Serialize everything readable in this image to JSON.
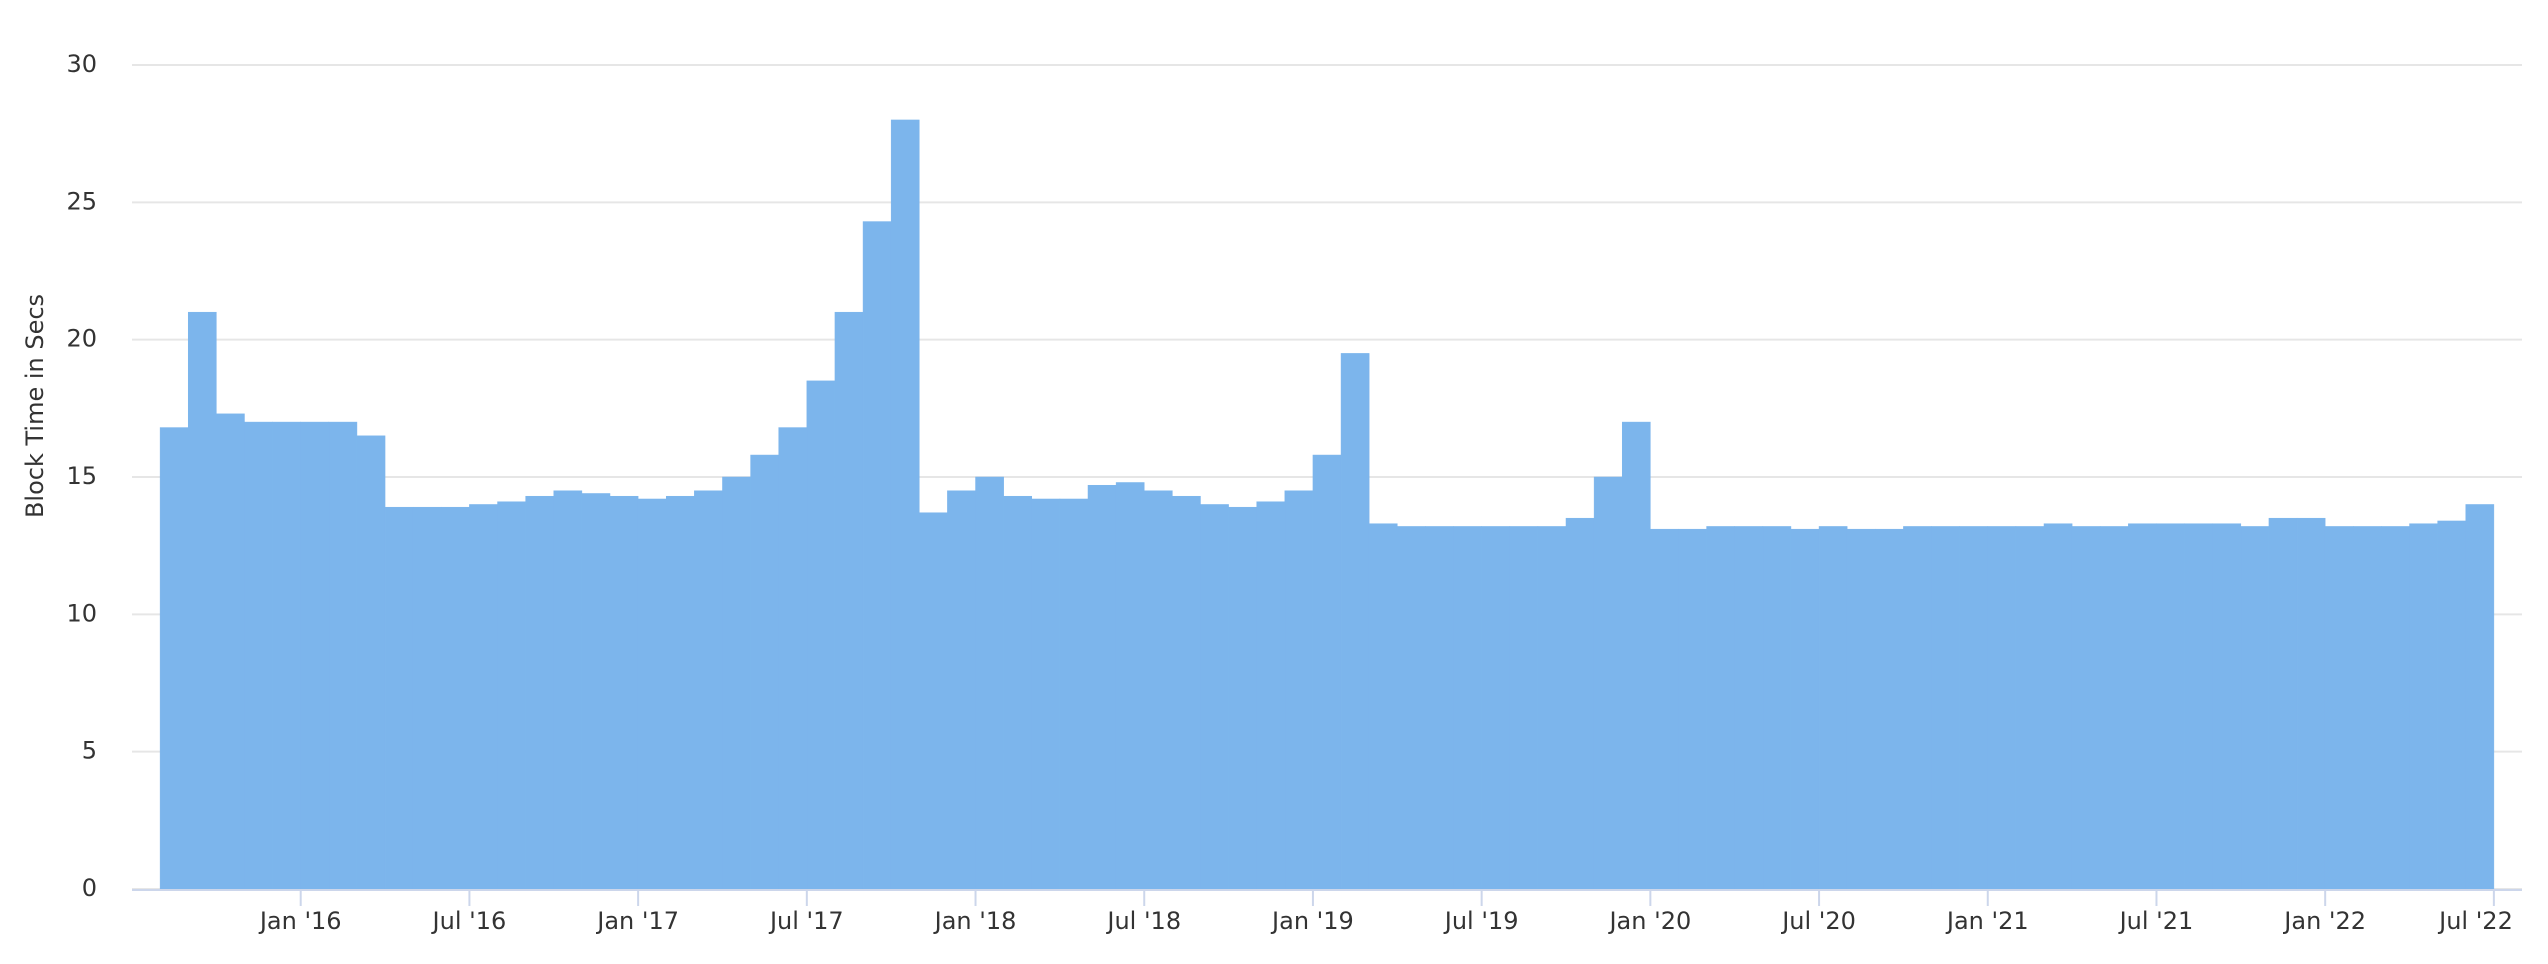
{
  "chart_data": {
    "type": "bar",
    "y_label": "Block Time in Secs",
    "color": "#7cb5ec",
    "grid": true,
    "x": [
      "2015-08",
      "2015-09",
      "2015-10",
      "2015-11",
      "2015-12",
      "2016-01",
      "2016-02",
      "2016-03",
      "2016-04",
      "2016-05",
      "2016-06",
      "2016-07",
      "2016-08",
      "2016-09",
      "2016-10",
      "2016-11",
      "2016-12",
      "2017-01",
      "2017-02",
      "2017-03",
      "2017-04",
      "2017-05",
      "2017-06",
      "2017-07",
      "2017-08",
      "2017-09",
      "2017-10",
      "2017-11",
      "2017-12",
      "2018-01",
      "2018-02",
      "2018-03",
      "2018-04",
      "2018-05",
      "2018-06",
      "2018-07",
      "2018-08",
      "2018-09",
      "2018-10",
      "2018-11",
      "2018-12",
      "2019-01",
      "2019-02",
      "2019-03",
      "2019-04",
      "2019-05",
      "2019-06",
      "2019-07",
      "2019-08",
      "2019-09",
      "2019-10",
      "2019-11",
      "2019-12",
      "2020-01",
      "2020-02",
      "2020-03",
      "2020-04",
      "2020-05",
      "2020-06",
      "2020-07",
      "2020-08",
      "2020-09",
      "2020-10",
      "2020-11",
      "2020-12",
      "2021-01",
      "2021-02",
      "2021-03",
      "2021-04",
      "2021-05",
      "2021-06",
      "2021-07",
      "2021-08",
      "2021-09",
      "2021-10",
      "2021-11",
      "2021-12",
      "2022-01",
      "2022-02",
      "2022-03",
      "2022-04",
      "2022-05",
      "2022-06"
    ],
    "values": [
      16.8,
      21,
      17.3,
      17,
      17,
      17,
      17,
      16.5,
      13.9,
      13.9,
      13.9,
      14,
      14.1,
      14.3,
      14.5,
      14.4,
      14.3,
      14.2,
      14.3,
      14.5,
      15,
      15.8,
      16.8,
      18.5,
      21,
      24.3,
      28,
      13.7,
      14.5,
      15,
      14.3,
      14.2,
      14.2,
      14.7,
      14.8,
      14.5,
      14.3,
      14,
      13.9,
      14.1,
      14.5,
      15.8,
      19.5,
      13.3,
      13.2,
      13.2,
      13.2,
      13.2,
      13.2,
      13.2,
      13.5,
      15,
      17,
      13.1,
      13.1,
      13.2,
      13.2,
      13.2,
      13.1,
      13.2,
      13.1,
      13.1,
      13.2,
      13.2,
      13.2,
      13.2,
      13.2,
      13.3,
      13.2,
      13.2,
      13.3,
      13.3,
      13.3,
      13.3,
      13.2,
      13.5,
      13.5,
      13.2,
      13.2,
      13.2,
      13.3,
      13.4,
      14
    ],
    "xlim": [
      "2015-07",
      "2022-08"
    ],
    "xticks": [
      {
        "value": "2016-01",
        "label": "Jan '16"
      },
      {
        "value": "2016-07",
        "label": "Jul '16"
      },
      {
        "value": "2017-01",
        "label": "Jan '17"
      },
      {
        "value": "2017-07",
        "label": "Jul '17"
      },
      {
        "value": "2018-01",
        "label": "Jan '18"
      },
      {
        "value": "2018-07",
        "label": "Jul '18"
      },
      {
        "value": "2019-01",
        "label": "Jan '19"
      },
      {
        "value": "2019-07",
        "label": "Jul '19"
      },
      {
        "value": "2020-01",
        "label": "Jan '20"
      },
      {
        "value": "2020-07",
        "label": "Jul '20"
      },
      {
        "value": "2021-01",
        "label": "Jan '21"
      },
      {
        "value": "2021-07",
        "label": "Jul '21"
      },
      {
        "value": "2022-01",
        "label": "Jan '22"
      },
      {
        "value": "2022-07",
        "label": "Jul '22"
      }
    ],
    "ylim": [
      0,
      30
    ],
    "yticks": [
      0,
      5,
      10,
      15,
      20,
      25,
      30
    ]
  }
}
